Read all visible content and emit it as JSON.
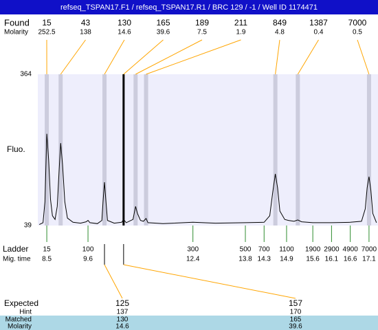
{
  "header": {
    "title": "refseq_TSPAN17.F1 / refseq_TSPAN17.R1 / BRC 129 / -1 / Well ID 1174471"
  },
  "chart_data": {
    "type": "electropherogram",
    "ylabel": "Fluo.",
    "ylim": [
      39,
      364
    ],
    "yticks": [
      39,
      364
    ],
    "xlim": [
      8.26,
      17.34
    ],
    "found": {
      "label": "Found",
      "molarity_label": "Molarity",
      "color": "#ffa500",
      "band_color": "#ccccdd",
      "peaks": [
        {
          "size": 15,
          "molarity": 252.5,
          "time": 8.5
        },
        {
          "size": 43,
          "molarity": 138,
          "time": 8.87
        },
        {
          "size": 130,
          "molarity": 14.6,
          "time": 10.04
        },
        {
          "size": 165,
          "molarity": 39.6,
          "time": 10.55
        },
        {
          "size": 189,
          "molarity": 7.5,
          "time": 10.87
        },
        {
          "size": 211,
          "molarity": 1.9,
          "time": 11.15
        },
        {
          "size": 849,
          "molarity": 4.8,
          "time": 14.6
        },
        {
          "size": 1387,
          "molarity": 0.4,
          "time": 15.2
        },
        {
          "size": 7000,
          "molarity": 0.5,
          "time": 17.1
        }
      ]
    },
    "trace": {
      "color": "#000000",
      "x": [
        8.3,
        8.4,
        8.45,
        8.5,
        8.55,
        8.6,
        8.65,
        8.72,
        8.78,
        8.83,
        8.87,
        8.92,
        8.98,
        9.05,
        9.2,
        9.4,
        9.55,
        9.6,
        9.65,
        9.85,
        9.97,
        10.0,
        10.04,
        10.08,
        10.12,
        10.3,
        10.5,
        10.55,
        10.62,
        10.8,
        10.87,
        10.92,
        11.0,
        11.08,
        11.15,
        11.2,
        11.6,
        12.4,
        13.0,
        13.8,
        14.3,
        14.45,
        14.53,
        14.6,
        14.66,
        14.72,
        14.85,
        14.95,
        15.1,
        15.2,
        15.3,
        15.6,
        16.1,
        16.6,
        16.9,
        17.0,
        17.05,
        17.1,
        17.15,
        17.2,
        17.3
      ],
      "y": [
        41,
        45,
        90,
        236,
        180,
        95,
        60,
        52,
        80,
        160,
        216,
        170,
        90,
        55,
        46,
        44,
        47,
        50,
        45,
        43,
        50,
        90,
        132,
        90,
        50,
        44,
        46,
        52,
        45,
        52,
        80,
        65,
        50,
        48,
        54,
        45,
        43,
        46,
        44,
        45,
        46,
        60,
        110,
        150,
        120,
        70,
        52,
        50,
        48,
        51,
        47,
        45,
        45,
        46,
        48,
        75,
        120,
        144,
        115,
        65,
        45
      ]
    },
    "ladder": {
      "label": "Ladder",
      "time_label": "Mig. time",
      "color": "#2e8b2e",
      "sizes": [
        15,
        100,
        300,
        500,
        700,
        1100,
        1900,
        2900,
        4900,
        7000
      ],
      "times": [
        8.5,
        9.6,
        12.4,
        13.8,
        14.3,
        14.9,
        15.6,
        16.1,
        16.6,
        17.1
      ]
    },
    "expected": {
      "label": "Expected",
      "hint_label": "Hint",
      "matched_label": "Matched",
      "molarity_label": "Molarity",
      "highlight_color": "#add8e6",
      "columns": [
        {
          "size": 125,
          "hint": 137,
          "matched": 130,
          "molarity": 14.6
        },
        {
          "size": 157,
          "hint": 170,
          "matched": 165,
          "molarity": 39.6
        }
      ]
    }
  }
}
